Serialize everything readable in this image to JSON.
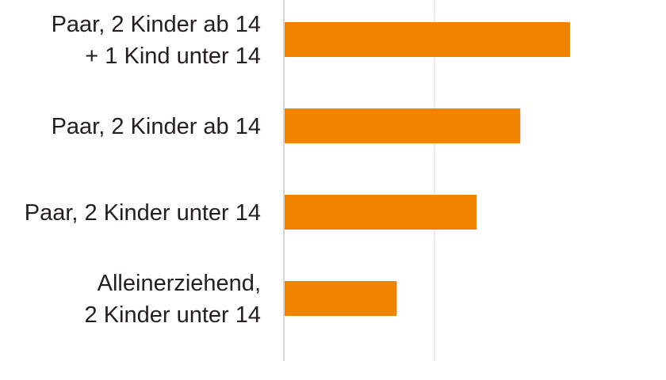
{
  "chart_data": {
    "type": "bar",
    "orientation": "horizontal",
    "title": "",
    "xlabel": "",
    "ylabel": "",
    "categories": [
      [
        "Paar, 2 Kinder ab 14",
        "+ 1 Kind unter 14"
      ],
      [
        "Paar, 2 Kinder ab 14"
      ],
      [
        "Paar, 2 Kinder unter 14"
      ],
      [
        "Alleinerziehend,",
        "2 Kinder unter 14"
      ]
    ],
    "values": [
      1.9,
      1.57,
      1.28,
      0.75
    ],
    "xlim": [
      0,
      2.0
    ],
    "grid": true,
    "gridlines_x": [
      0,
      1
    ],
    "legend": "none",
    "colors": {
      "bar": "#f08300",
      "axis": "#c8c8c8",
      "grid": "#e6e6e6",
      "text": "#231f20"
    }
  }
}
